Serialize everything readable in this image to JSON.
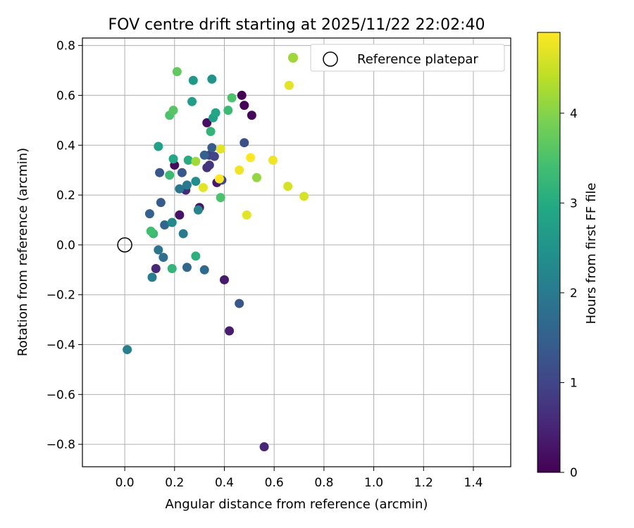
{
  "chart_data": {
    "type": "scatter",
    "title": "FOV centre drift starting at 2025/11/22 22:02:40",
    "xlabel": "Angular distance from reference (arcmin)",
    "ylabel": "Rotation from reference (arcmin)",
    "xlim": [
      -0.17,
      1.55
    ],
    "ylim": [
      -0.89,
      0.83
    ],
    "xticks": [
      0.0,
      0.2,
      0.4,
      0.6,
      0.8,
      1.0,
      1.2,
      1.4
    ],
    "xtick_labels": [
      "0.0",
      "0.2",
      "0.4",
      "0.6",
      "0.8",
      "1.0",
      "1.2",
      "1.4"
    ],
    "yticks": [
      -0.8,
      -0.6,
      -0.4,
      -0.2,
      0.0,
      0.2,
      0.4,
      0.6,
      0.8
    ],
    "ytick_labels": [
      "−0.8",
      "−0.6",
      "−0.4",
      "−0.2",
      "0.0",
      "0.2",
      "0.4",
      "0.6",
      "0.8"
    ],
    "grid": true,
    "legend": {
      "placement": "top-right",
      "label": "Reference platepar",
      "marker_color": "#9fd638"
    },
    "reference_point": {
      "x": 0.0,
      "y": 0.0
    },
    "colorbar": {
      "label": "Hours from first FF file",
      "min": 0,
      "max": 4.9,
      "ticks": [
        0,
        1,
        2,
        3,
        4
      ],
      "tick_labels": [
        "0",
        "1",
        "2",
        "3",
        "4"
      ],
      "colormap": "viridis"
    },
    "points": [
      {
        "x": 0.47,
        "y": 0.6,
        "h": 0.0
      },
      {
        "x": 0.48,
        "y": 0.56,
        "h": 0.05
      },
      {
        "x": 0.51,
        "y": 0.52,
        "h": 0.1
      },
      {
        "x": 0.33,
        "y": 0.49,
        "h": 0.2
      },
      {
        "x": 0.2,
        "y": 0.32,
        "h": 0.15
      },
      {
        "x": 0.22,
        "y": 0.12,
        "h": 0.25
      },
      {
        "x": 0.3,
        "y": 0.15,
        "h": 0.3
      },
      {
        "x": 0.37,
        "y": 0.25,
        "h": 0.35
      },
      {
        "x": 0.4,
        "y": -0.14,
        "h": 0.35
      },
      {
        "x": 0.42,
        "y": -0.345,
        "h": 0.4
      },
      {
        "x": 0.56,
        "y": -0.81,
        "h": 0.5
      },
      {
        "x": 0.125,
        "y": -0.095,
        "h": 0.55
      },
      {
        "x": 0.245,
        "y": 0.22,
        "h": 0.6
      },
      {
        "x": 0.33,
        "y": 0.31,
        "h": 0.7
      },
      {
        "x": 0.34,
        "y": 0.32,
        "h": 0.75
      },
      {
        "x": 0.34,
        "y": 0.36,
        "h": 0.9
      },
      {
        "x": 0.36,
        "y": 0.355,
        "h": 1.0
      },
      {
        "x": 0.39,
        "y": 0.26,
        "h": 1.1
      },
      {
        "x": 0.48,
        "y": 0.41,
        "h": 1.2
      },
      {
        "x": 0.46,
        "y": -0.235,
        "h": 1.3
      },
      {
        "x": 0.14,
        "y": 0.29,
        "h": 1.3
      },
      {
        "x": 0.23,
        "y": 0.29,
        "h": 1.35
      },
      {
        "x": 0.145,
        "y": 0.17,
        "h": 1.4
      },
      {
        "x": 0.1,
        "y": 0.125,
        "h": 1.5
      },
      {
        "x": 0.16,
        "y": 0.08,
        "h": 1.6
      },
      {
        "x": 0.25,
        "y": -0.09,
        "h": 1.6
      },
      {
        "x": 0.32,
        "y": -0.1,
        "h": 1.7
      },
      {
        "x": 0.35,
        "y": 0.39,
        "h": 1.4
      },
      {
        "x": 0.32,
        "y": 0.36,
        "h": 1.5
      },
      {
        "x": 0.155,
        "y": -0.05,
        "h": 1.8
      },
      {
        "x": 0.135,
        "y": -0.02,
        "h": 1.9
      },
      {
        "x": 0.235,
        "y": 0.045,
        "h": 2.0
      },
      {
        "x": 0.11,
        "y": -0.13,
        "h": 2.05
      },
      {
        "x": 0.01,
        "y": -0.42,
        "h": 2.1
      },
      {
        "x": 0.25,
        "y": 0.24,
        "h": 2.0
      },
      {
        "x": 0.22,
        "y": 0.225,
        "h": 1.9
      },
      {
        "x": 0.295,
        "y": 0.14,
        "h": 2.2
      },
      {
        "x": 0.19,
        "y": 0.09,
        "h": 2.3
      },
      {
        "x": 0.285,
        "y": 0.255,
        "h": 2.4
      },
      {
        "x": 0.35,
        "y": 0.665,
        "h": 2.5
      },
      {
        "x": 0.275,
        "y": 0.66,
        "h": 2.6
      },
      {
        "x": 0.27,
        "y": 0.575,
        "h": 2.7
      },
      {
        "x": 0.355,
        "y": 0.51,
        "h": 2.8
      },
      {
        "x": 0.365,
        "y": 0.53,
        "h": 2.9
      },
      {
        "x": 0.135,
        "y": 0.395,
        "h": 2.8
      },
      {
        "x": 0.195,
        "y": 0.345,
        "h": 2.9
      },
      {
        "x": 0.255,
        "y": 0.34,
        "h": 3.0
      },
      {
        "x": 0.285,
        "y": -0.045,
        "h": 3.1
      },
      {
        "x": 0.19,
        "y": -0.095,
        "h": 3.2
      },
      {
        "x": 0.115,
        "y": 0.045,
        "h": 3.3
      },
      {
        "x": 0.105,
        "y": 0.055,
        "h": 3.4
      },
      {
        "x": 0.18,
        "y": 0.28,
        "h": 3.3
      },
      {
        "x": 0.345,
        "y": 0.455,
        "h": 3.2
      },
      {
        "x": 0.415,
        "y": 0.54,
        "h": 3.3
      },
      {
        "x": 0.43,
        "y": 0.59,
        "h": 3.5
      },
      {
        "x": 0.18,
        "y": 0.52,
        "h": 3.5
      },
      {
        "x": 0.195,
        "y": 0.54,
        "h": 3.6
      },
      {
        "x": 0.21,
        "y": 0.695,
        "h": 3.7
      },
      {
        "x": 0.385,
        "y": 0.19,
        "h": 3.5
      },
      {
        "x": 0.285,
        "y": 0.335,
        "h": 4.2
      },
      {
        "x": 0.53,
        "y": 0.27,
        "h": 4.1
      },
      {
        "x": 0.38,
        "y": 0.265,
        "h": 4.9
      },
      {
        "x": 0.385,
        "y": 0.385,
        "h": 4.7
      },
      {
        "x": 0.315,
        "y": 0.23,
        "h": 4.7
      },
      {
        "x": 0.46,
        "y": 0.3,
        "h": 4.8
      },
      {
        "x": 0.505,
        "y": 0.35,
        "h": 4.9
      },
      {
        "x": 0.595,
        "y": 0.34,
        "h": 4.8
      },
      {
        "x": 0.49,
        "y": 0.12,
        "h": 4.7
      },
      {
        "x": 0.655,
        "y": 0.235,
        "h": 4.6
      },
      {
        "x": 0.72,
        "y": 0.195,
        "h": 4.6
      },
      {
        "x": 0.66,
        "y": 0.64,
        "h": 4.7
      }
    ]
  }
}
